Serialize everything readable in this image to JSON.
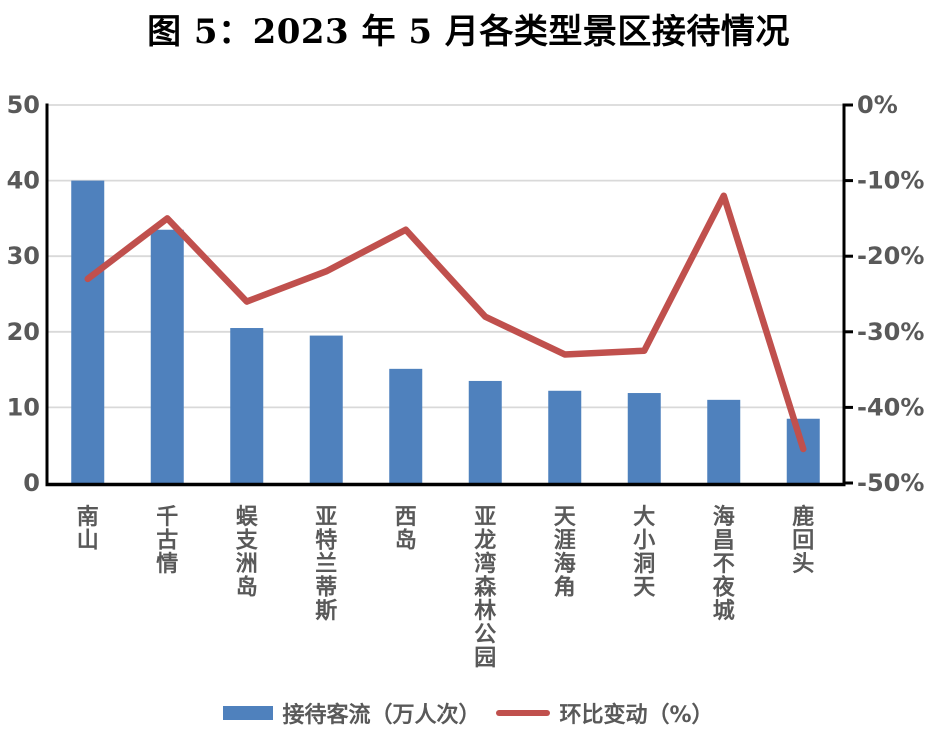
{
  "title": "图 5：2023 年 5 月各类型景区接待情况",
  "legend": {
    "bar_label": "接待客流（万人次）",
    "line_label": "环比变动（%）"
  },
  "colors": {
    "bar": "#4F81BD",
    "line": "#C0504D",
    "grid": "#D9D9D9",
    "axis": "#000000",
    "tick_label": "#595959"
  },
  "chart_data": {
    "type": "bar",
    "subtype": "combo-bar-line-dual-axis",
    "title": "图 5：2023 年 5 月各类型景区接待情况",
    "categories": [
      "南山",
      "千古情",
      "蜈支洲岛",
      "亚特兰蒂斯",
      "西岛",
      "亚龙湾森林公园",
      "天涯海角",
      "大小洞天",
      "海昌不夜城",
      "鹿回头"
    ],
    "series": [
      {
        "name": "接待客流（万人次）",
        "type": "bar",
        "axis": "left",
        "color": "#4F81BD",
        "values": [
          40,
          33.5,
          20.5,
          19.5,
          15.1,
          13.5,
          12.2,
          11.9,
          11,
          8.5
        ]
      },
      {
        "name": "环比变动（%）",
        "type": "line",
        "axis": "right",
        "color": "#C0504D",
        "values": [
          -23,
          -15,
          -26,
          -22,
          -16.5,
          -28,
          -33,
          -32.5,
          -12,
          -45.5
        ]
      }
    ],
    "left_axis": {
      "min": 0,
      "max": 50,
      "tick_labels": [
        "0",
        "10",
        "20",
        "30",
        "40",
        "50"
      ]
    },
    "right_axis": {
      "min": -50,
      "max": 0,
      "tick_labels": [
        "0%",
        "-10%",
        "-20%",
        "-30%",
        "-40%",
        "-50%"
      ]
    },
    "grid": true,
    "legend_position": "bottom"
  }
}
